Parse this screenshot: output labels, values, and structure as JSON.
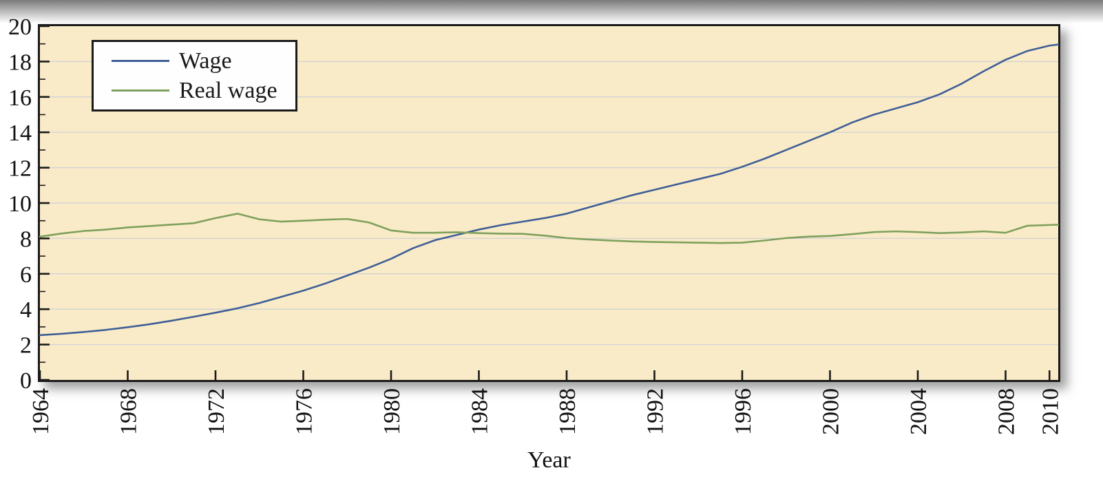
{
  "legend": {
    "items": [
      {
        "label": "Wage",
        "color": "#3E5E96"
      },
      {
        "label": "Real wage",
        "color": "#7EA05C"
      }
    ]
  },
  "colors": {
    "plot_background": "#FAEBC8",
    "grid_line": "#D4D4D4",
    "axis": "#1A1A1A",
    "wage_line": "#3E5E96",
    "real_wage_line": "#7EA05C"
  },
  "chart_data": {
    "type": "line",
    "title": "",
    "xlabel": "Year",
    "ylabel": "",
    "xlim": [
      1964,
      2010.4
    ],
    "ylim": [
      0,
      20
    ],
    "x_ticks": [
      1964,
      1968,
      1972,
      1976,
      1980,
      1984,
      1988,
      1992,
      1996,
      2000,
      2004,
      2008,
      2010
    ],
    "y_ticks": [
      0,
      2,
      4,
      6,
      8,
      10,
      12,
      14,
      16,
      18,
      20
    ],
    "y_minor_ticks": [
      1,
      3,
      5,
      7,
      9,
      11,
      13,
      15,
      17,
      19
    ],
    "grid": "horizontal gridlines at major y ticks",
    "legend_position": "top-left",
    "x": [
      1964,
      1965,
      1966,
      1967,
      1968,
      1969,
      1970,
      1971,
      1972,
      1973,
      1974,
      1975,
      1976,
      1977,
      1978,
      1979,
      1980,
      1981,
      1982,
      1983,
      1984,
      1985,
      1986,
      1987,
      1988,
      1989,
      1990,
      1991,
      1992,
      1993,
      1994,
      1995,
      1996,
      1997,
      1998,
      1999,
      2000,
      2001,
      2002,
      2003,
      2004,
      2005,
      2006,
      2007,
      2008,
      2009,
      2010,
      2011
    ],
    "series": [
      {
        "name": "Wage",
        "color": "#3E5E96",
        "values": [
          2.53,
          2.61,
          2.71,
          2.83,
          2.98,
          3.15,
          3.35,
          3.57,
          3.8,
          4.05,
          4.35,
          4.7,
          5.05,
          5.45,
          5.9,
          6.35,
          6.85,
          7.45,
          7.9,
          8.2,
          8.5,
          8.75,
          8.95,
          9.15,
          9.4,
          9.75,
          10.1,
          10.45,
          10.75,
          11.05,
          11.35,
          11.65,
          12.05,
          12.5,
          13.0,
          13.5,
          14.0,
          14.55,
          15.0,
          15.35,
          15.7,
          16.15,
          16.75,
          17.45,
          18.1,
          18.6,
          18.9,
          19.05
        ]
      },
      {
        "name": "Real wage",
        "color": "#7EA05C",
        "values": [
          8.1,
          8.28,
          8.42,
          8.5,
          8.62,
          8.7,
          8.78,
          8.86,
          9.15,
          9.4,
          9.08,
          8.95,
          9.0,
          9.06,
          9.1,
          8.9,
          8.45,
          8.32,
          8.32,
          8.35,
          8.3,
          8.27,
          8.26,
          8.16,
          8.02,
          7.94,
          7.88,
          7.83,
          7.8,
          7.78,
          7.76,
          7.74,
          7.76,
          7.88,
          8.02,
          8.1,
          8.14,
          8.24,
          8.36,
          8.4,
          8.36,
          8.3,
          8.34,
          8.4,
          8.32,
          8.72,
          8.76,
          8.8
        ]
      }
    ]
  }
}
